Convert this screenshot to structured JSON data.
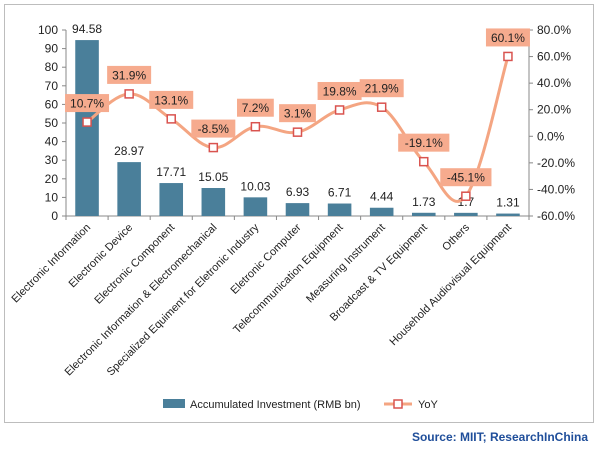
{
  "chart_data": {
    "type": "bar",
    "categories": [
      "Electronic Information",
      "Electronic Device",
      "Electronic Component",
      "Electronic Information & Electromechanical",
      "Specialized Equiment for Eletronic Industry",
      "Eletronic Computer",
      "Telecommunication Equipment",
      "Measuring Instrument",
      "Broadcast & TV Equipment",
      "Others",
      "Household Audiovisual Equipment"
    ],
    "series": [
      {
        "name": "Accumulated Investment (RMB bn)",
        "type": "bar",
        "axis": "left",
        "color": "#4a7f9a",
        "values": [
          94.58,
          28.97,
          17.71,
          15.05,
          10.03,
          6.93,
          6.71,
          4.44,
          1.73,
          1.7,
          1.31
        ],
        "labels": [
          "94.58",
          "28.97",
          "17.71",
          "15.05",
          "10.03",
          "6.93",
          "6.71",
          "4.44",
          "1.73",
          "1.7",
          "1.31"
        ]
      },
      {
        "name": "YoY",
        "type": "line",
        "axis": "right",
        "color": "#f4a582",
        "marker_color": "#d9534f",
        "values": [
          10.7,
          31.9,
          13.1,
          -8.5,
          7.2,
          3.1,
          19.8,
          21.9,
          -19.1,
          -45.1,
          60.1
        ],
        "labels": [
          "10.7%",
          "31.9%",
          "13.1%",
          "-8.5%",
          "7.2%",
          "3.1%",
          "19.8%",
          "21.9%",
          "-19.1%",
          "-45.1%",
          "60.1%"
        ]
      }
    ],
    "ylim": [
      0,
      100
    ],
    "y2lim": [
      -60,
      80
    ],
    "yticks": [
      "0",
      "10",
      "20",
      "30",
      "40",
      "50",
      "60",
      "70",
      "80",
      "90",
      "100"
    ],
    "y2ticks": [
      "-60.0%",
      "-40.0%",
      "-20.0%",
      "0.0%",
      "20.0%",
      "40.0%",
      "60.0%",
      "80.0%"
    ],
    "grid": false,
    "legend_position": "bottom"
  },
  "source": "Source: MIIT; ResearchInChina"
}
